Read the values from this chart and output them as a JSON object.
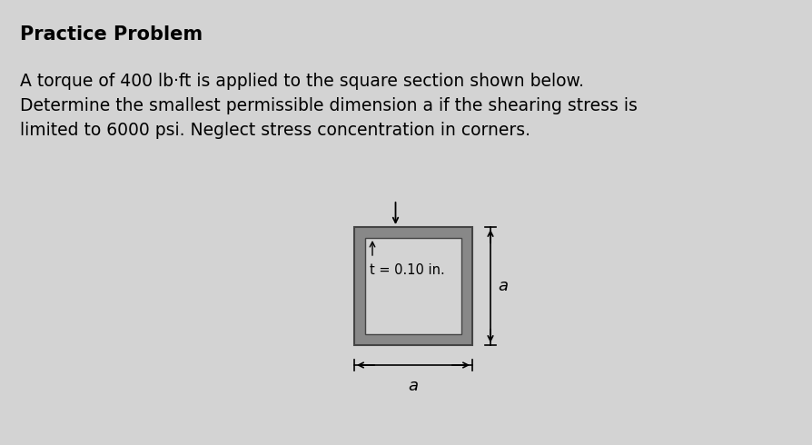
{
  "background_color": "#d3d3d3",
  "title": "Practice Problem",
  "title_fontsize": 15,
  "body_text_line1": "A torque of 400 lb·ft is applied to the square section shown below.",
  "body_text_line2": "Determine the smallest permissible dimension a if the shearing stress is",
  "body_text_line3": "limited to 6000 psi. Neglect stress concentration in corners.",
  "body_fontsize": 13.5,
  "box_outer_color": "#888888",
  "box_inner_color": "#d3d3d3",
  "t_label": "t = 0.10 in.",
  "t_label_fontsize": 10.5,
  "a_label": "a",
  "a_fontsize": 13
}
